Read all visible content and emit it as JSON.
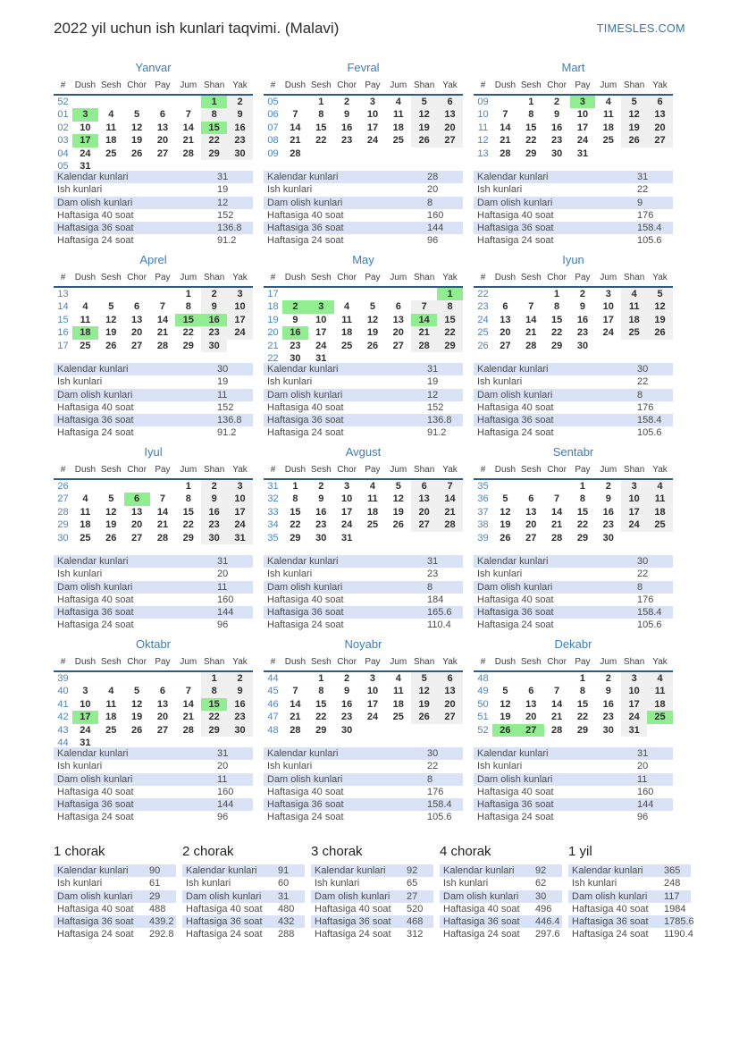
{
  "header": {
    "title": "2022 yil uchun ish kunlari taqvimi. (Malavi)",
    "site": "TIMESLES.COM"
  },
  "day_headers": [
    "#",
    "Dush",
    "Sesh",
    "Chor",
    "Pay",
    "Jum",
    "Shan",
    "Yak"
  ],
  "stats_labels": [
    "Kalendar kunlari",
    "Ish kunlari",
    "Dam olish kunlari",
    "Haftasiga 40 soat",
    "Haftasiga 36 soat",
    "Haftasiga 24 soat"
  ],
  "holiday_color": "#90ee90",
  "weekend_color": "#f0f0f0",
  "stripe_color": "#dae3f5",
  "months": [
    {
      "name": "Yanvar",
      "stats": [
        "31",
        "19",
        "12",
        "152",
        "136.8",
        "91.2"
      ],
      "weeks": [
        {
          "w": "52",
          "d": [
            "",
            "",
            "",
            "",
            "",
            "1*",
            "2"
          ]
        },
        {
          "w": "01",
          "d": [
            "3*",
            "4",
            "5",
            "6",
            "7",
            "8",
            "9"
          ]
        },
        {
          "w": "02",
          "d": [
            "10",
            "11",
            "12",
            "13",
            "14",
            "15*",
            "16"
          ]
        },
        {
          "w": "03",
          "d": [
            "17*",
            "18",
            "19",
            "20",
            "21",
            "22",
            "23"
          ]
        },
        {
          "w": "04",
          "d": [
            "24",
            "25",
            "26",
            "27",
            "28",
            "29",
            "30"
          ]
        },
        {
          "w": "05",
          "d": [
            "31",
            "",
            "",
            "",
            "",
            "",
            ""
          ]
        }
      ]
    },
    {
      "name": "Fevral",
      "stats": [
        "28",
        "20",
        "8",
        "160",
        "144",
        "96"
      ],
      "weeks": [
        {
          "w": "05",
          "d": [
            "",
            "1",
            "2",
            "3",
            "4",
            "5",
            "6"
          ]
        },
        {
          "w": "06",
          "d": [
            "7",
            "8",
            "9",
            "10",
            "11",
            "12",
            "13"
          ]
        },
        {
          "w": "07",
          "d": [
            "14",
            "15",
            "16",
            "17",
            "18",
            "19",
            "20"
          ]
        },
        {
          "w": "08",
          "d": [
            "21",
            "22",
            "23",
            "24",
            "25",
            "26",
            "27"
          ]
        },
        {
          "w": "09",
          "d": [
            "28",
            "",
            "",
            "",
            "",
            "",
            ""
          ]
        }
      ]
    },
    {
      "name": "Mart",
      "stats": [
        "31",
        "22",
        "9",
        "176",
        "158.4",
        "105.6"
      ],
      "weeks": [
        {
          "w": "09",
          "d": [
            "",
            "1",
            "2",
            "3*",
            "4",
            "5",
            "6"
          ]
        },
        {
          "w": "10",
          "d": [
            "7",
            "8",
            "9",
            "10",
            "11",
            "12",
            "13"
          ]
        },
        {
          "w": "11",
          "d": [
            "14",
            "15",
            "16",
            "17",
            "18",
            "19",
            "20"
          ]
        },
        {
          "w": "12",
          "d": [
            "21",
            "22",
            "23",
            "24",
            "25",
            "26",
            "27"
          ]
        },
        {
          "w": "13",
          "d": [
            "28",
            "29",
            "30",
            "31",
            "",
            "",
            ""
          ]
        }
      ]
    },
    {
      "name": "Aprel",
      "stats": [
        "30",
        "19",
        "11",
        "152",
        "136.8",
        "91.2"
      ],
      "weeks": [
        {
          "w": "13",
          "d": [
            "",
            "",
            "",
            "",
            "1",
            "2",
            "3"
          ]
        },
        {
          "w": "14",
          "d": [
            "4",
            "5",
            "6",
            "7",
            "8",
            "9",
            "10"
          ]
        },
        {
          "w": "15",
          "d": [
            "11",
            "12",
            "13",
            "14",
            "15*",
            "16*",
            "17"
          ]
        },
        {
          "w": "16",
          "d": [
            "18*",
            "19",
            "20",
            "21",
            "22",
            "23",
            "24"
          ]
        },
        {
          "w": "17",
          "d": [
            "25",
            "26",
            "27",
            "28",
            "29",
            "30",
            ""
          ]
        }
      ]
    },
    {
      "name": "May",
      "stats": [
        "31",
        "19",
        "12",
        "152",
        "136.8",
        "91.2"
      ],
      "weeks": [
        {
          "w": "17",
          "d": [
            "",
            "",
            "",
            "",
            "",
            "",
            "1*"
          ]
        },
        {
          "w": "18",
          "d": [
            "2*",
            "3*",
            "4",
            "5",
            "6",
            "7",
            "8"
          ]
        },
        {
          "w": "19",
          "d": [
            "9",
            "10",
            "11",
            "12",
            "13",
            "14*",
            "15"
          ]
        },
        {
          "w": "20",
          "d": [
            "16*",
            "17",
            "18",
            "19",
            "20",
            "21",
            "22"
          ]
        },
        {
          "w": "21",
          "d": [
            "23",
            "24",
            "25",
            "26",
            "27",
            "28",
            "29"
          ]
        },
        {
          "w": "22",
          "d": [
            "30",
            "31",
            "",
            "",
            "",
            "",
            ""
          ]
        }
      ]
    },
    {
      "name": "Iyun",
      "stats": [
        "30",
        "22",
        "8",
        "176",
        "158.4",
        "105.6"
      ],
      "weeks": [
        {
          "w": "22",
          "d": [
            "",
            "",
            "1",
            "2",
            "3",
            "4",
            "5"
          ]
        },
        {
          "w": "23",
          "d": [
            "6",
            "7",
            "8",
            "9",
            "10",
            "11",
            "12"
          ]
        },
        {
          "w": "24",
          "d": [
            "13",
            "14",
            "15",
            "16",
            "17",
            "18",
            "19"
          ]
        },
        {
          "w": "25",
          "d": [
            "20",
            "21",
            "22",
            "23",
            "24",
            "25",
            "26"
          ]
        },
        {
          "w": "26",
          "d": [
            "27",
            "28",
            "29",
            "30",
            "",
            "",
            ""
          ]
        }
      ]
    },
    {
      "name": "Iyul",
      "stats": [
        "31",
        "20",
        "11",
        "160",
        "144",
        "96"
      ],
      "weeks": [
        {
          "w": "26",
          "d": [
            "",
            "",
            "",
            "",
            "1",
            "2",
            "3"
          ]
        },
        {
          "w": "27",
          "d": [
            "4",
            "5",
            "6*",
            "7",
            "8",
            "9",
            "10"
          ]
        },
        {
          "w": "28",
          "d": [
            "11",
            "12",
            "13",
            "14",
            "15",
            "16",
            "17"
          ]
        },
        {
          "w": "29",
          "d": [
            "18",
            "19",
            "20",
            "21",
            "22",
            "23",
            "24"
          ]
        },
        {
          "w": "30",
          "d": [
            "25",
            "26",
            "27",
            "28",
            "29",
            "30",
            "31"
          ]
        }
      ]
    },
    {
      "name": "Avgust",
      "stats": [
        "31",
        "23",
        "8",
        "184",
        "165.6",
        "110.4"
      ],
      "weeks": [
        {
          "w": "31",
          "d": [
            "1",
            "2",
            "3",
            "4",
            "5",
            "6",
            "7"
          ]
        },
        {
          "w": "32",
          "d": [
            "8",
            "9",
            "10",
            "11",
            "12",
            "13",
            "14"
          ]
        },
        {
          "w": "33",
          "d": [
            "15",
            "16",
            "17",
            "18",
            "19",
            "20",
            "21"
          ]
        },
        {
          "w": "34",
          "d": [
            "22",
            "23",
            "24",
            "25",
            "26",
            "27",
            "28"
          ]
        },
        {
          "w": "35",
          "d": [
            "29",
            "30",
            "31",
            "",
            "",
            "",
            ""
          ]
        }
      ]
    },
    {
      "name": "Sentabr",
      "stats": [
        "30",
        "22",
        "8",
        "176",
        "158.4",
        "105.6"
      ],
      "weeks": [
        {
          "w": "35",
          "d": [
            "",
            "",
            "",
            "1",
            "2",
            "3",
            "4"
          ]
        },
        {
          "w": "36",
          "d": [
            "5",
            "6",
            "7",
            "8",
            "9",
            "10",
            "11"
          ]
        },
        {
          "w": "37",
          "d": [
            "12",
            "13",
            "14",
            "15",
            "16",
            "17",
            "18"
          ]
        },
        {
          "w": "38",
          "d": [
            "19",
            "20",
            "21",
            "22",
            "23",
            "24",
            "25"
          ]
        },
        {
          "w": "39",
          "d": [
            "26",
            "27",
            "28",
            "29",
            "30",
            "",
            ""
          ]
        }
      ]
    },
    {
      "name": "Oktabr",
      "stats": [
        "31",
        "20",
        "11",
        "160",
        "144",
        "96"
      ],
      "weeks": [
        {
          "w": "39",
          "d": [
            "",
            "",
            "",
            "",
            "",
            "1",
            "2"
          ]
        },
        {
          "w": "40",
          "d": [
            "3",
            "4",
            "5",
            "6",
            "7",
            "8",
            "9"
          ]
        },
        {
          "w": "41",
          "d": [
            "10",
            "11",
            "12",
            "13",
            "14",
            "15*",
            "16"
          ]
        },
        {
          "w": "42",
          "d": [
            "17*",
            "18",
            "19",
            "20",
            "21",
            "22",
            "23"
          ]
        },
        {
          "w": "43",
          "d": [
            "24",
            "25",
            "26",
            "27",
            "28",
            "29",
            "30"
          ]
        },
        {
          "w": "44",
          "d": [
            "31",
            "",
            "",
            "",
            "",
            "",
            ""
          ]
        }
      ]
    },
    {
      "name": "Noyabr",
      "stats": [
        "30",
        "22",
        "8",
        "176",
        "158.4",
        "105.6"
      ],
      "weeks": [
        {
          "w": "44",
          "d": [
            "",
            "1",
            "2",
            "3",
            "4",
            "5",
            "6"
          ]
        },
        {
          "w": "45",
          "d": [
            "7",
            "8",
            "9",
            "10",
            "11",
            "12",
            "13"
          ]
        },
        {
          "w": "46",
          "d": [
            "14",
            "15",
            "16",
            "17",
            "18",
            "19",
            "20"
          ]
        },
        {
          "w": "47",
          "d": [
            "21",
            "22",
            "23",
            "24",
            "25",
            "26",
            "27"
          ]
        },
        {
          "w": "48",
          "d": [
            "28",
            "29",
            "30",
            "",
            "",
            "",
            ""
          ]
        }
      ]
    },
    {
      "name": "Dekabr",
      "stats": [
        "31",
        "20",
        "11",
        "160",
        "144",
        "96"
      ],
      "weeks": [
        {
          "w": "48",
          "d": [
            "",
            "",
            "",
            "1",
            "2",
            "3",
            "4"
          ]
        },
        {
          "w": "49",
          "d": [
            "5",
            "6",
            "7",
            "8",
            "9",
            "10",
            "11"
          ]
        },
        {
          "w": "50",
          "d": [
            "12",
            "13",
            "14",
            "15",
            "16",
            "17",
            "18"
          ]
        },
        {
          "w": "51",
          "d": [
            "19",
            "20",
            "21",
            "22",
            "23",
            "24",
            "25*"
          ]
        },
        {
          "w": "52",
          "d": [
            "26*",
            "27*",
            "28",
            "29",
            "30",
            "31",
            ""
          ]
        }
      ]
    }
  ],
  "quarters": [
    {
      "name": "1 chorak",
      "stats": [
        "90",
        "61",
        "29",
        "488",
        "439.2",
        "292.8"
      ]
    },
    {
      "name": "2 chorak",
      "stats": [
        "91",
        "60",
        "31",
        "480",
        "432",
        "288"
      ]
    },
    {
      "name": "3 chorak",
      "stats": [
        "92",
        "65",
        "27",
        "520",
        "468",
        "312"
      ]
    },
    {
      "name": "4 chorak",
      "stats": [
        "92",
        "62",
        "30",
        "496",
        "446.4",
        "297.6"
      ]
    },
    {
      "name": "1 yil",
      "stats": [
        "365",
        "248",
        "117",
        "1984",
        "1785.6",
        "1190.4"
      ]
    }
  ]
}
